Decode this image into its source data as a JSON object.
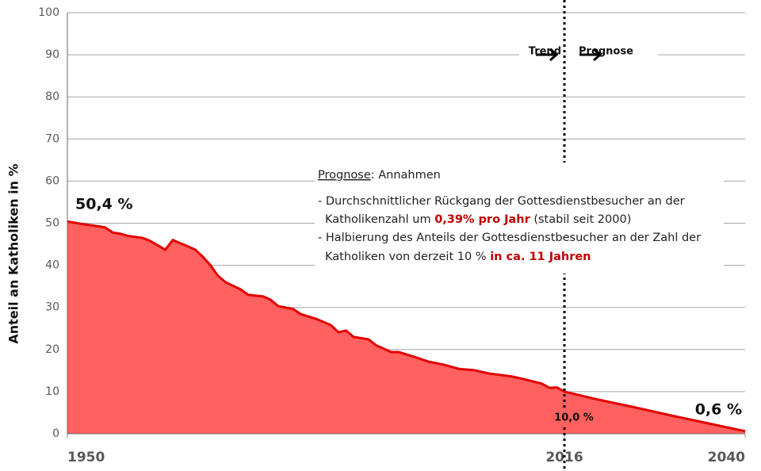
{
  "chart_data": {
    "type": "area",
    "y_label": "Anteil an Katholiken in %",
    "x": [
      1950,
      1952,
      1954,
      1955,
      1956,
      1957,
      1958,
      1960,
      1961,
      1963,
      1964,
      1966,
      1967,
      1968,
      1969,
      1970,
      1971,
      1973,
      1974,
      1976,
      1977,
      1978,
      1980,
      1981,
      1983,
      1985,
      1986,
      1987,
      1988,
      1990,
      1991,
      1993,
      1994,
      1996,
      1998,
      2000,
      2002,
      2004,
      2006,
      2009,
      2011,
      2013,
      2014,
      2015,
      2016,
      2020,
      2025,
      2030,
      2035,
      2040
    ],
    "values": [
      50.4,
      49.8,
      49.3,
      49.0,
      47.8,
      47.5,
      47.0,
      46.5,
      45.8,
      43.7,
      46.0,
      44.5,
      43.7,
      42.0,
      40.0,
      37.5,
      36.0,
      34.3,
      33.0,
      32.6,
      31.8,
      30.3,
      29.6,
      28.4,
      27.3,
      25.8,
      24.1,
      24.5,
      23.0,
      22.4,
      21.0,
      19.4,
      19.4,
      18.3,
      17.1,
      16.4,
      15.4,
      15.1,
      14.3,
      13.6,
      12.8,
      11.9,
      10.9,
      11.0,
      10.0,
      8.3,
      6.4,
      4.4,
      2.5,
      0.6
    ],
    "color": "#ff6060",
    "line_color": "#e30000",
    "xlim": [
      1950,
      2040
    ],
    "xticks": [
      1950,
      2016,
      2040
    ],
    "ylim": [
      0,
      100
    ],
    "yticks": [
      0,
      10,
      20,
      30,
      40,
      50,
      60,
      70,
      80,
      90,
      100
    ],
    "grid": true,
    "divider_x": 2016,
    "annotations": {
      "start": "50,4 %",
      "end": "0,6 %",
      "divider": "10,0 %",
      "left_of_divider": "Trend",
      "right_of_divider": "Prognose"
    },
    "annotation_box": {
      "title": [
        "Prognose",
        ": Annahmen"
      ],
      "line1": "- Durchschnittlicher Rückgang der Gottesdienstbesucher an der",
      "line2": [
        "Katholikenzahl um ",
        "0,39% pro Jahr",
        " (stabil seit 2000)"
      ],
      "line3": "- Halbierung des Anteils der Gottesdienstbesucher  an der Zahl der",
      "line4": [
        "Katholiken von derzeit 10 % ",
        "in ca. 11 Jahren"
      ]
    }
  }
}
